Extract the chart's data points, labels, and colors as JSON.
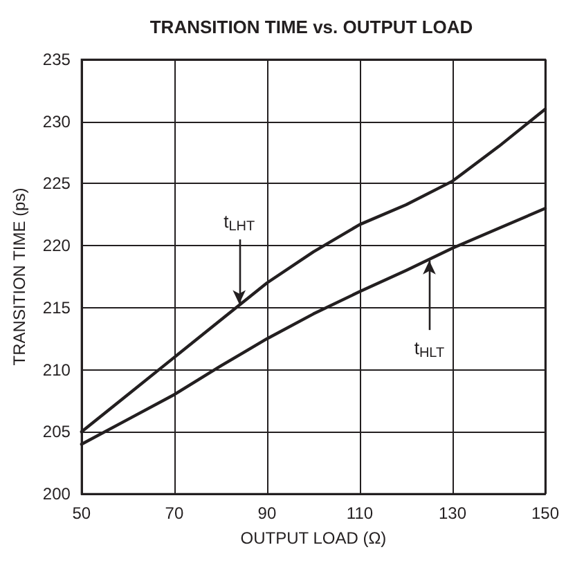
{
  "chart_data": {
    "type": "line",
    "title": "TRANSITION TIME vs. OUTPUT LOAD",
    "xlabel": "OUTPUT LOAD (Ω)",
    "ylabel": "TRANSITION TIME (ps)",
    "x": [
      50,
      60,
      70,
      80,
      90,
      100,
      110,
      120,
      130,
      140,
      150
    ],
    "series": [
      {
        "color": "#231f20",
        "values": [
          205,
          208,
          211,
          214,
          217,
          219.5,
          221.7,
          223.3,
          225.2,
          228,
          231
        ]
      },
      {
        "color": "#231f20",
        "values": [
          204,
          206,
          208,
          210.3,
          212.5,
          214.5,
          216.3,
          218,
          219.8,
          221.4,
          223
        ]
      }
    ],
    "annotations": [
      {
        "text": "t$_{LHT}$",
        "x": 84,
        "y": 215.3
      },
      {
        "text": "t$_{HLT}$",
        "x": 125,
        "y": 218.8
      }
    ],
    "xlim": [
      50,
      150
    ],
    "xticks": [
      50,
      70,
      90,
      110,
      130,
      150
    ],
    "ylim": [
      200,
      235
    ],
    "yticks": [
      200,
      205,
      210,
      215,
      220,
      225,
      230,
      235
    ],
    "grid": true,
    "marker": "none",
    "line_style": "solid"
  }
}
